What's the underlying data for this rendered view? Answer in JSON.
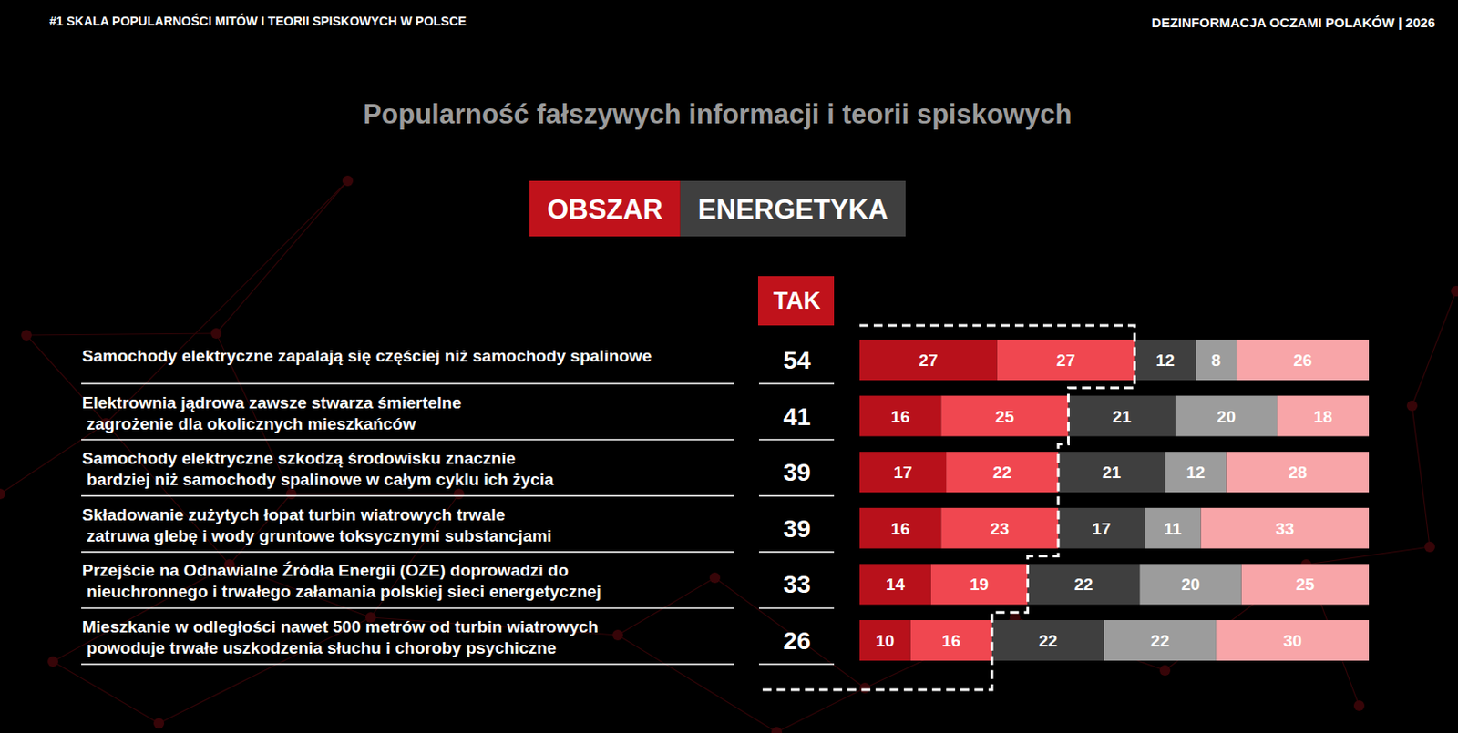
{
  "chart_data": {
    "type": "bar",
    "orientation": "horizontal",
    "stacked": true,
    "data_labels": true,
    "tick_labels": false,
    "header_left": "#1 SKALA POPULARNOŚCI MITÓW I TEORII SPISKOWYCH W POLSCE",
    "header_right": "DEZINFORMACJA OCZAMI POLAKÓW | 2026",
    "title": "Popularność fałszywych informacji i teorii spiskowych",
    "area_label": "OBSZAR",
    "area": "ENERGETYKA",
    "total_label": "TAK",
    "totals": [
      54,
      41,
      39,
      39,
      33,
      26
    ],
    "categories": [
      "Samochody elektryczne zapalają się częściej niż samochody spalinowe",
      "Elektrownia jądrowa zawsze stwarza śmiertelne zagrożenie dla okolicznych mieszkańców",
      "Samochody elektryczne szkodzą środowisku znacznie bardziej niż samochody spalinowe w całym cyklu ich życia",
      "Składowanie zużytych łopat turbin wiatrowych trwale zatruwa glebę i wody gruntowe toksycznymi substancjami",
      "Przejście na Odnawialne Źródła Energii (OZE) doprowadzi do nieuchronnego i trwałego załamania polskiej sieci energetycznej",
      "Mieszkanie w odległości nawet 500 metrów od turbin wiatrowych powoduje trwałe uszkodzenia słuchu i choroby psychiczne"
    ],
    "series": [
      {
        "color": "#b8111b",
        "values": [
          27,
          16,
          17,
          16,
          14,
          10
        ]
      },
      {
        "color": "#f04750",
        "values": [
          27,
          25,
          22,
          23,
          19,
          16
        ]
      },
      {
        "color": "#3f3f3f",
        "values": [
          12,
          21,
          21,
          17,
          22,
          22
        ]
      },
      {
        "color": "#9c9c9c",
        "values": [
          8,
          20,
          12,
          11,
          20,
          22
        ]
      },
      {
        "color": "#f8a5a8",
        "values": [
          26,
          18,
          28,
          33,
          25,
          30
        ]
      }
    ],
    "xlim": [
      0,
      100
    ]
  }
}
